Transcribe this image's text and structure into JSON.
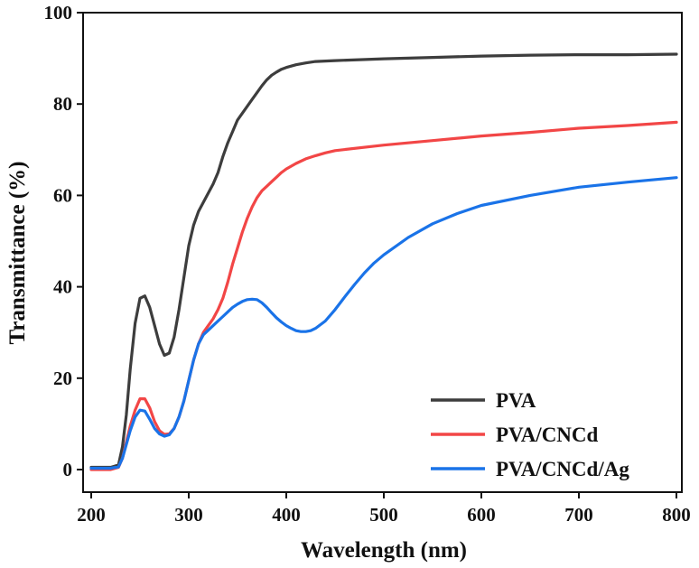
{
  "chart_data": {
    "type": "line",
    "title": "",
    "xlabel": "Wavelength (nm)",
    "ylabel": "Transmittance (%)",
    "xlim": [
      200,
      800
    ],
    "ylim": [
      0,
      100
    ],
    "xticks": [
      200,
      300,
      400,
      500,
      600,
      700,
      800
    ],
    "yticks": [
      0,
      20,
      40,
      60,
      80,
      100
    ],
    "grid": false,
    "legend_position": "bottom-right",
    "series": [
      {
        "name": "PVA",
        "color": "#3d3d3d",
        "x": [
          200,
          220,
          228,
          232,
          236,
          240,
          245,
          250,
          255,
          260,
          265,
          270,
          275,
          280,
          285,
          290,
          295,
          300,
          305,
          310,
          315,
          320,
          325,
          330,
          335,
          340,
          345,
          350,
          355,
          360,
          365,
          370,
          375,
          380,
          385,
          390,
          395,
          400,
          410,
          420,
          430,
          440,
          450,
          500,
          550,
          600,
          650,
          700,
          750,
          800
        ],
        "y": [
          0.5,
          0.5,
          1,
          5,
          12,
          22,
          32,
          37.5,
          38,
          35.5,
          31.5,
          27.5,
          25,
          25.5,
          29,
          35,
          42,
          49,
          53.5,
          56.5,
          58.5,
          60.5,
          62.5,
          65,
          68.5,
          71.5,
          74,
          76.5,
          78,
          79.5,
          81,
          82.5,
          84,
          85.3,
          86.3,
          87,
          87.6,
          88,
          88.6,
          89,
          89.3,
          89.4,
          89.5,
          89.9,
          90.2,
          90.5,
          90.7,
          90.8,
          90.8,
          90.9
        ]
      },
      {
        "name": "PVA/CNCd",
        "color": "#f24646",
        "x": [
          200,
          220,
          228,
          232,
          236,
          240,
          245,
          250,
          255,
          260,
          265,
          270,
          275,
          280,
          285,
          290,
          295,
          300,
          305,
          310,
          315,
          320,
          325,
          330,
          335,
          340,
          345,
          350,
          355,
          360,
          365,
          370,
          375,
          380,
          385,
          390,
          395,
          400,
          410,
          420,
          430,
          440,
          450,
          500,
          550,
          600,
          650,
          700,
          750,
          800
        ],
        "y": [
          0,
          0,
          0.5,
          2.5,
          6,
          9.5,
          13,
          15.5,
          15.5,
          13.5,
          10.5,
          8.5,
          7.7,
          7.8,
          9,
          11.5,
          15,
          19.5,
          24,
          27.5,
          30,
          31.5,
          33,
          35,
          37.5,
          41,
          45,
          48.5,
          52,
          55,
          57.5,
          59.5,
          61,
          62,
          63,
          64,
          65,
          65.8,
          67,
          68,
          68.7,
          69.3,
          69.8,
          71,
          72,
          73,
          73.8,
          74.7,
          75.3,
          76
        ]
      },
      {
        "name": "PVA/CNCd/Ag",
        "color": "#1a73e8",
        "x": [
          200,
          220,
          228,
          232,
          236,
          240,
          245,
          250,
          255,
          260,
          265,
          270,
          275,
          280,
          285,
          290,
          295,
          300,
          305,
          310,
          315,
          320,
          325,
          330,
          335,
          340,
          345,
          350,
          355,
          360,
          365,
          370,
          375,
          380,
          385,
          390,
          395,
          400,
          405,
          410,
          415,
          420,
          425,
          430,
          440,
          450,
          460,
          470,
          480,
          490,
          500,
          525,
          550,
          575,
          600,
          650,
          700,
          750,
          800
        ],
        "y": [
          0.3,
          0.3,
          0.6,
          2.5,
          5.5,
          8.5,
          11.5,
          13,
          12.8,
          11,
          9,
          7.8,
          7.3,
          7.6,
          9,
          11.5,
          15,
          19.5,
          24,
          27.5,
          29.5,
          30.5,
          31.5,
          32.5,
          33.5,
          34.5,
          35.5,
          36.2,
          36.8,
          37.2,
          37.3,
          37.2,
          36.5,
          35.5,
          34.3,
          33.2,
          32.3,
          31.5,
          30.9,
          30.4,
          30.2,
          30.2,
          30.4,
          30.9,
          32.5,
          35,
          37.8,
          40.5,
          43,
          45.2,
          47,
          50.8,
          53.8,
          56,
          57.8,
          60,
          61.8,
          62.9,
          63.9
        ]
      }
    ]
  }
}
